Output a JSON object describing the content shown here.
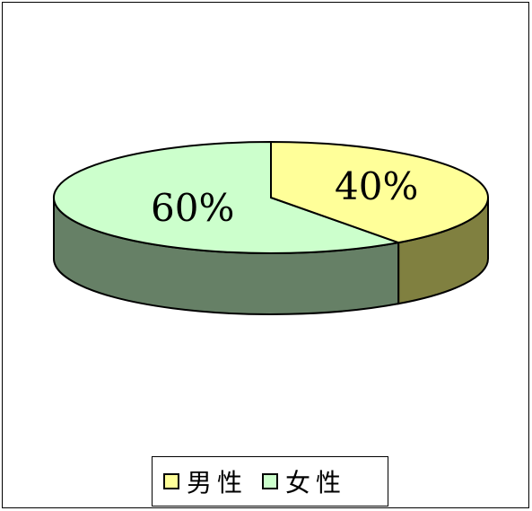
{
  "chart_data": {
    "type": "pie",
    "three_d": true,
    "slices": [
      {
        "name": "男性",
        "value": 40,
        "label": "40%",
        "color": "#FFFF99",
        "side_color": "#808040"
      },
      {
        "name": "女性",
        "value": 60,
        "label": "60%",
        "color": "#CCFFCC",
        "side_color": "#668066"
      }
    ],
    "legend_position": "bottom"
  }
}
